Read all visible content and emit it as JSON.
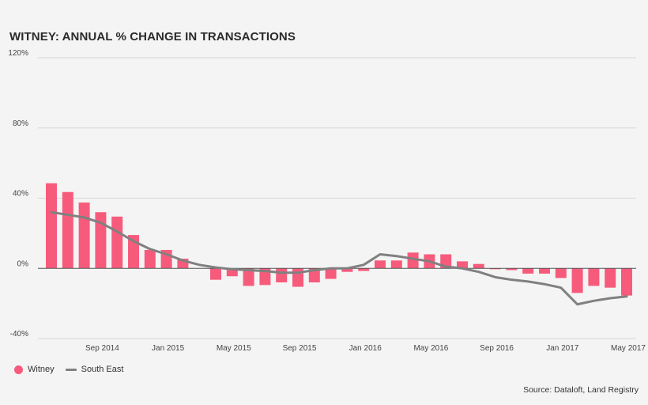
{
  "title": "WITNEY: ANNUAL % CHANGE IN TRANSACTIONS",
  "source": "Source: Dataloft, Land Registry",
  "colors": {
    "bar": "#f75b7c",
    "line": "#808080",
    "grid": "#d6d6d6",
    "zero": "#555555"
  },
  "legend": [
    {
      "label": "Witney",
      "shape": "circle",
      "color": "#f75b7c"
    },
    {
      "label": "South East",
      "shape": "line",
      "color": "#808080"
    }
  ],
  "chart_data": {
    "type": "bar",
    "yticks": [
      {
        "value": 120,
        "label": "120%"
      },
      {
        "value": 80,
        "label": "80%"
      },
      {
        "value": 40,
        "label": "40%"
      },
      {
        "value": 0,
        "label": "0%"
      },
      {
        "value": -40,
        "label": "-40%"
      }
    ],
    "ylim": [
      -40,
      120
    ],
    "xticks": [
      {
        "index": 3,
        "label": "Sep 2014"
      },
      {
        "index": 7,
        "label": "Jan 2015"
      },
      {
        "index": 11,
        "label": "May 2015"
      },
      {
        "index": 15,
        "label": "Sep 2015"
      },
      {
        "index": 19,
        "label": "Jan 2016"
      },
      {
        "index": 23,
        "label": "May 2016"
      },
      {
        "index": 27,
        "label": "Sep 2016"
      },
      {
        "index": 31,
        "label": "Jan 2017"
      },
      {
        "index": 35,
        "label": "May 2017"
      }
    ],
    "categories": [
      "Jun 2014",
      "Jul 2014",
      "Aug 2014",
      "Sep 2014",
      "Oct 2014",
      "Nov 2014",
      "Dec 2014",
      "Jan 2015",
      "Feb 2015",
      "Mar 2015",
      "Apr 2015",
      "May 2015",
      "Jun 2015",
      "Jul 2015",
      "Aug 2015",
      "Sep 2015",
      "Oct 2015",
      "Nov 2015",
      "Dec 2015",
      "Jan 2016",
      "Feb 2016",
      "Mar 2016",
      "Apr 2016",
      "May 2016",
      "Jun 2016",
      "Jul 2016",
      "Aug 2016",
      "Sep 2016",
      "Oct 2016",
      "Nov 2016",
      "Dec 2016",
      "Jan 2017",
      "Feb 2017",
      "Mar 2017",
      "Apr 2017",
      "May 2017",
      "Jun 2017"
    ],
    "series": [
      {
        "name": "Witney",
        "type": "bar",
        "values": [
          48.5,
          43.5,
          37.5,
          32,
          29.5,
          19,
          10.5,
          10.5,
          5.5,
          null,
          -6.5,
          -4.5,
          -10,
          -9.5,
          -8,
          -10.5,
          -8,
          -6,
          -2,
          -1.5,
          4.5,
          4.5,
          9,
          8,
          8,
          4,
          2.5,
          -0.5,
          -1,
          -3,
          -3,
          -5.5,
          -14,
          -10,
          -11,
          -15.5,
          null
        ]
      },
      {
        "name": "South East",
        "type": "line",
        "values": [
          32,
          30.5,
          29,
          26,
          21,
          15.5,
          11,
          8,
          4.5,
          2,
          0.5,
          -0.5,
          -1,
          -1.5,
          -2.5,
          -2.5,
          -1,
          0,
          0,
          2,
          8,
          7,
          5.5,
          4,
          1,
          0,
          -2,
          -5,
          -6.5,
          -7.5,
          -9,
          -11,
          -20.5,
          -18.5,
          -17,
          -16,
          null
        ]
      }
    ]
  }
}
